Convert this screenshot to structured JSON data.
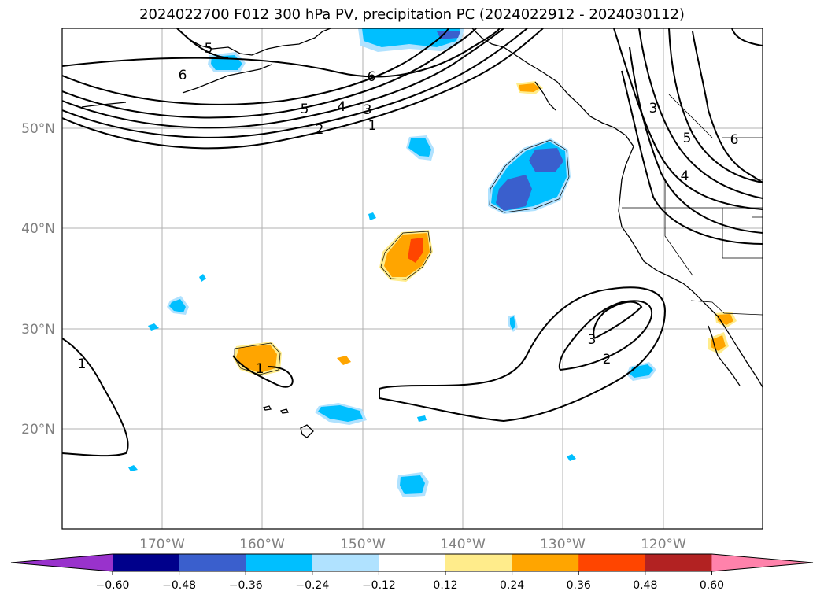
{
  "title": "2024022700 F012 300 hPa PV, precipitation PC (2024022912 - 2024030112)",
  "map": {
    "lat_ticks": [
      "50°N",
      "40°N",
      "30°N",
      "20°N"
    ],
    "lon_ticks": [
      "170°W",
      "160°W",
      "150°W",
      "140°W",
      "130°W",
      "120°W"
    ],
    "pv_contour_labels": [
      "5",
      "6",
      "6",
      "5",
      "4",
      "3",
      "2",
      "1",
      "3",
      "6",
      "5",
      "4",
      "1",
      "3",
      "2",
      "1"
    ]
  },
  "colorbar": {
    "levels": [
      "−0.60",
      "−0.48",
      "−0.36",
      "−0.24",
      "−0.12",
      "0.12",
      "0.24",
      "0.36",
      "0.48",
      "0.60"
    ],
    "colors": [
      "#9932cc",
      "#00008b",
      "#3a5fcd",
      "#00bfff",
      "#b0e2ff",
      "#ffffff",
      "#ffec8b",
      "#ffa500",
      "#ff4500",
      "#b22222",
      "#ff82ab"
    ]
  }
}
